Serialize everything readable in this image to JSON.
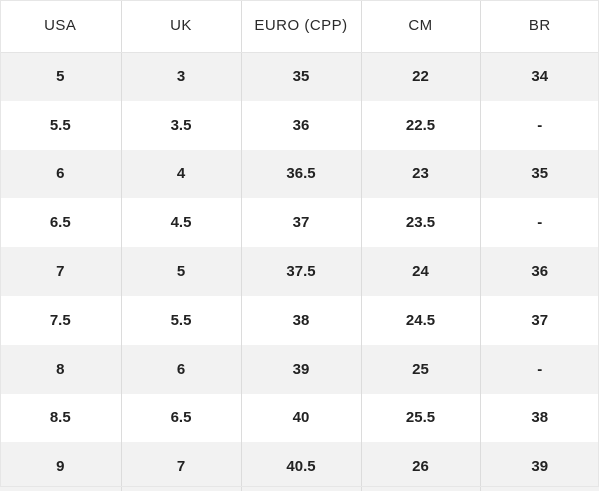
{
  "table": {
    "headers": [
      "USA",
      "UK",
      "EURO (CPP)",
      "CM",
      "BR"
    ],
    "rows": [
      [
        "5",
        "3",
        "35",
        "22",
        "34"
      ],
      [
        "5.5",
        "3.5",
        "36",
        "22.5",
        "-"
      ],
      [
        "6",
        "4",
        "36.5",
        "23",
        "35"
      ],
      [
        "6.5",
        "4.5",
        "37",
        "23.5",
        "-"
      ],
      [
        "7",
        "5",
        "37.5",
        "24",
        "36"
      ],
      [
        "7.5",
        "5.5",
        "38",
        "24.5",
        "37"
      ],
      [
        "8",
        "6",
        "39",
        "25",
        "-"
      ],
      [
        "8.5",
        "6.5",
        "40",
        "25.5",
        "38"
      ],
      [
        "9",
        "7",
        "40.5",
        "26",
        "39"
      ]
    ]
  },
  "colors": {
    "stripe": "#f2f2f2",
    "background": "#ffffff",
    "divider": "#dcdcdc",
    "text": "#222222"
  }
}
